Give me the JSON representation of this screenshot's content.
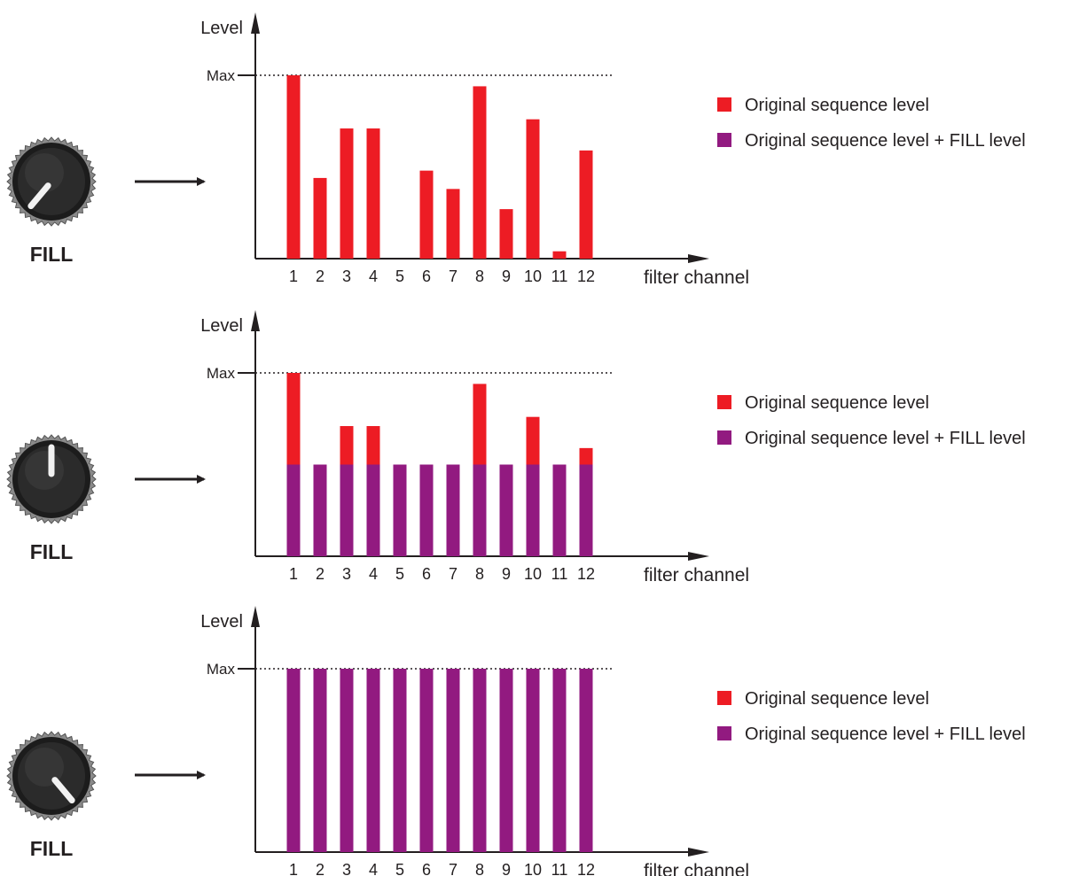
{
  "colors": {
    "original": "#ED1C24",
    "fill": "#921A80",
    "axis": "#231F20",
    "knob_body": "#2B2B2B",
    "knob_rim": "#8A8A8A",
    "pointer": "#F2F2F2"
  },
  "knob_label": "FILL",
  "legend": {
    "original": "Original sequence level",
    "fill": "Original sequence level + FILL level"
  },
  "y_label": "Level",
  "max_label": "Max",
  "x_label": "filter channel",
  "chart_data": [
    {
      "type": "bar",
      "knob_position": "minimum",
      "categories": [
        "1",
        "2",
        "3",
        "4",
        "5",
        "6",
        "7",
        "8",
        "9",
        "10",
        "11",
        "12"
      ],
      "series": [
        {
          "key": "original",
          "values": [
            1.0,
            0.44,
            0.71,
            0.71,
            0.0,
            0.48,
            0.38,
            0.94,
            0.27,
            0.76,
            0.04,
            0.59
          ]
        },
        {
          "key": "fill",
          "values": [
            0,
            0,
            0,
            0,
            0,
            0,
            0,
            0,
            0,
            0,
            0,
            0
          ]
        }
      ],
      "ylim": [
        0,
        1
      ],
      "max_line": 1.0,
      "grid": false,
      "legend_position": "right"
    },
    {
      "type": "bar",
      "knob_position": "middle",
      "categories": [
        "1",
        "2",
        "3",
        "4",
        "5",
        "6",
        "7",
        "8",
        "9",
        "10",
        "11",
        "12"
      ],
      "series": [
        {
          "key": "original",
          "values": [
            1.0,
            0.44,
            0.71,
            0.71,
            0.0,
            0.48,
            0.38,
            0.94,
            0.27,
            0.76,
            0.04,
            0.59
          ]
        },
        {
          "key": "fill",
          "values": [
            0.5,
            0.5,
            0.5,
            0.5,
            0.5,
            0.5,
            0.5,
            0.5,
            0.5,
            0.5,
            0.5,
            0.5
          ]
        }
      ],
      "ylim": [
        0,
        1
      ],
      "max_line": 1.0,
      "grid": false,
      "legend_position": "right"
    },
    {
      "type": "bar",
      "knob_position": "maximum",
      "categories": [
        "1",
        "2",
        "3",
        "4",
        "5",
        "6",
        "7",
        "8",
        "9",
        "10",
        "11",
        "12"
      ],
      "series": [
        {
          "key": "original",
          "values": [
            1.0,
            0.44,
            0.71,
            0.71,
            0.0,
            0.48,
            0.38,
            0.94,
            0.27,
            0.76,
            0.04,
            0.59
          ]
        },
        {
          "key": "fill",
          "values": [
            1,
            1,
            1,
            1,
            1,
            1,
            1,
            1,
            1,
            1,
            1,
            1
          ]
        }
      ],
      "ylim": [
        0,
        1
      ],
      "max_line": 1.0,
      "grid": false,
      "legend_position": "right"
    }
  ]
}
